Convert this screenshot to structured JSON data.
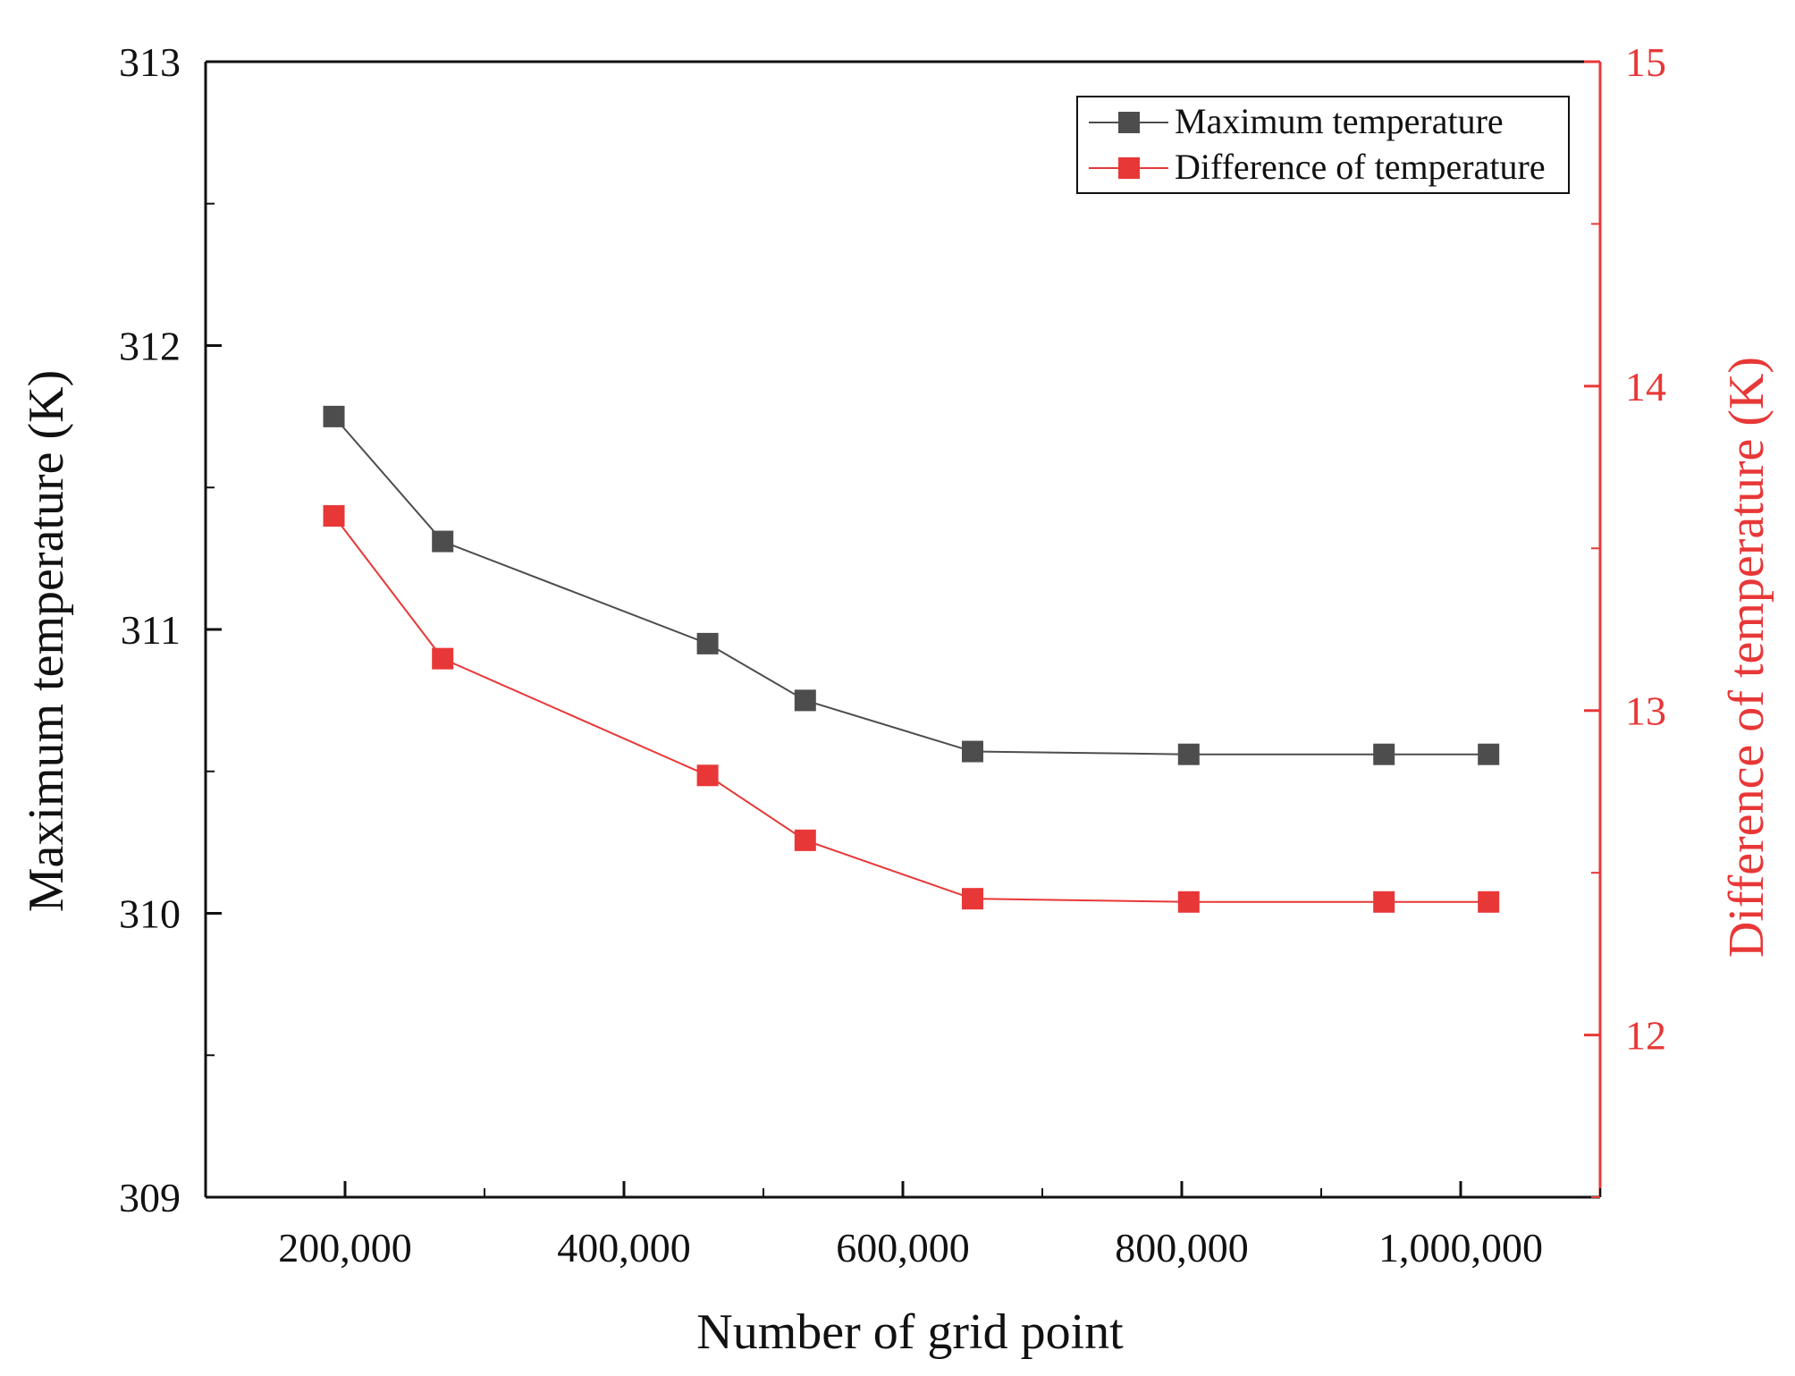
{
  "chart_data": {
    "type": "line",
    "title": "",
    "xlabel": "Number of grid point",
    "ylabel_left": "Maximum temperature (K)",
    "ylabel_right": "Difference of temperature (K)",
    "xlim": [
      100000,
      1100000
    ],
    "x_ticks": [
      200000,
      400000,
      600000,
      800000,
      1000000
    ],
    "x_tick_labels": [
      "200,000",
      "400,000",
      "600,000",
      "800,000",
      "1,000,000"
    ],
    "ylim_left": [
      309,
      313
    ],
    "y_ticks_left": [
      309,
      310,
      311,
      312,
      313
    ],
    "y_tick_labels_left": [
      "309",
      "310",
      "311",
      "312",
      "313"
    ],
    "ylim_right": [
      11.5,
      15
    ],
    "y_ticks_right": [
      12,
      13,
      14,
      15
    ],
    "y_tick_labels_right": [
      "12",
      "13",
      "14",
      "15"
    ],
    "grid": false,
    "legend_position": "top-right",
    "series": [
      {
        "name": "Maximum temperature",
        "axis": "left",
        "color": "#4d4d4d",
        "marker": "square",
        "x": [
          192000,
          270000,
          460000,
          530000,
          650000,
          805000,
          945000,
          1020000
        ],
        "values": [
          311.75,
          311.31,
          310.95,
          310.75,
          310.57,
          310.56,
          310.56,
          310.56
        ]
      },
      {
        "name": "Difference of temperature",
        "axis": "right",
        "color": "#e83737",
        "marker": "square",
        "x": [
          192000,
          270000,
          460000,
          530000,
          650000,
          805000,
          945000,
          1020000
        ],
        "values": [
          13.6,
          13.16,
          12.8,
          12.6,
          12.42,
          12.41,
          12.41,
          12.41
        ]
      }
    ]
  }
}
